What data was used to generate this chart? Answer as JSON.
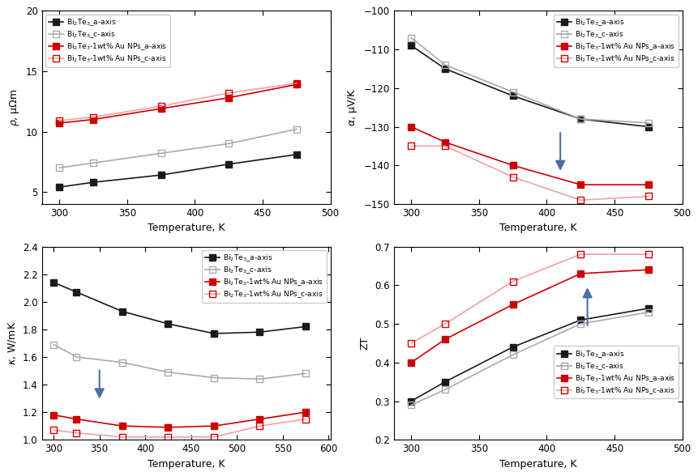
{
  "temp_rho": [
    300,
    325,
    375,
    425,
    475
  ],
  "rho_bi2te3_a": [
    5.4,
    5.8,
    6.4,
    7.3,
    8.1
  ],
  "rho_bi2te3_c": [
    7.0,
    7.4,
    8.2,
    9.0,
    10.2
  ],
  "rho_au_a": [
    10.7,
    11.0,
    11.9,
    12.8,
    13.9
  ],
  "rho_au_c": [
    10.9,
    11.2,
    12.1,
    13.2,
    14.0
  ],
  "temp_alpha": [
    300,
    325,
    375,
    425,
    475
  ],
  "alpha_bi2te3_a": [
    -109,
    -115,
    -122,
    -128,
    -130
  ],
  "alpha_bi2te3_c": [
    -107,
    -114,
    -121,
    -128,
    -129
  ],
  "alpha_au_a": [
    -130,
    -134,
    -140,
    -145,
    -145
  ],
  "alpha_au_c": [
    -135,
    -135,
    -143,
    -149,
    -148
  ],
  "temp_kappa": [
    300,
    325,
    375,
    425,
    475,
    525,
    575
  ],
  "kappa_bi2te3_a": [
    2.14,
    2.07,
    1.93,
    1.84,
    1.77,
    1.78,
    1.82
  ],
  "kappa_bi2te3_c": [
    1.69,
    1.6,
    1.56,
    1.49,
    1.45,
    1.44,
    1.48
  ],
  "kappa_au_a": [
    1.18,
    1.15,
    1.1,
    1.09,
    1.1,
    1.15,
    1.2
  ],
  "kappa_au_c": [
    1.07,
    1.05,
    1.02,
    1.02,
    1.02,
    1.1,
    1.15
  ],
  "temp_ZT": [
    300,
    325,
    375,
    425,
    475
  ],
  "ZT_bi2te3_a": [
    0.3,
    0.35,
    0.44,
    0.51,
    0.54
  ],
  "ZT_bi2te3_c": [
    0.29,
    0.33,
    0.42,
    0.5,
    0.53
  ],
  "ZT_au_a": [
    0.4,
    0.46,
    0.55,
    0.63,
    0.64
  ],
  "ZT_au_c": [
    0.45,
    0.5,
    0.61,
    0.68,
    0.68
  ],
  "color_black": "#1a1a1a",
  "color_gray": "#aaaaaa",
  "color_red": "#cc0000",
  "color_pink": "#f4a0a0",
  "arrow_color": "#4a6fa0",
  "legend_labels": [
    "Bi$_2$Te$_3$_a-axis",
    "Bi$_2$Te$_3$_c-axis",
    "Bi$_2$Te$_3$-1wt% Au NPs_a-axis",
    "Bi$_2$Te$_3$-1wt% Au NPs_c-axis"
  ]
}
